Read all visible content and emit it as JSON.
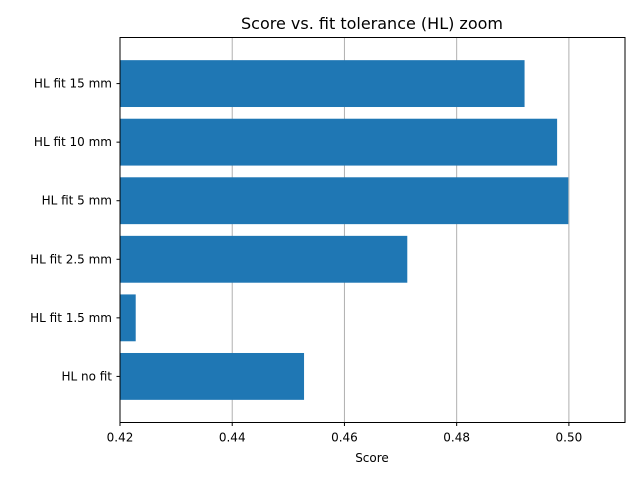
{
  "chart_data": {
    "type": "bar",
    "orientation": "horizontal",
    "title": "Score vs. fit tolerance (HL) zoom",
    "xlabel": "Score",
    "ylabel": "",
    "categories": [
      "HL no fit",
      "HL fit 1.5 mm",
      "HL fit 2.5 mm",
      "HL fit 5 mm",
      "HL fit 10 mm",
      "HL fit 15 mm"
    ],
    "values": [
      0.4528,
      0.4228,
      0.4712,
      0.4999,
      0.4979,
      0.4921
    ],
    "xlim": [
      0.42,
      0.51
    ],
    "xticks": [
      "0.42",
      "0.44",
      "0.46",
      "0.48",
      "0.50"
    ],
    "xtick_values": [
      0.42,
      0.44,
      0.46,
      0.48,
      0.5
    ],
    "grid": "x-axis only",
    "bar_color": "#1f77b4",
    "grid_color": "#b0b0b0"
  }
}
